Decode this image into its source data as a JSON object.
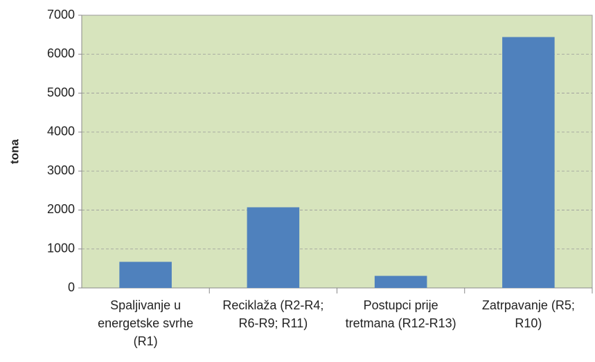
{
  "chart_data": {
    "type": "bar",
    "y_label": "tona",
    "categories": [
      "Spaljivanje u energetske svrhe (R1)",
      "Reciklaža (R2-R4; R6-R9; R11)",
      "Postupci prije tretmana (R12-R13)",
      "Zatrpavanje (R5; R10)"
    ],
    "values": [
      670,
      2070,
      310,
      6440
    ],
    "color": "#4f81bd",
    "background": "#d7e4bd",
    "ylim": [
      0,
      7000
    ],
    "yticks": [
      0,
      1000,
      2000,
      3000,
      4000,
      5000,
      6000,
      7000
    ],
    "grid": true
  }
}
